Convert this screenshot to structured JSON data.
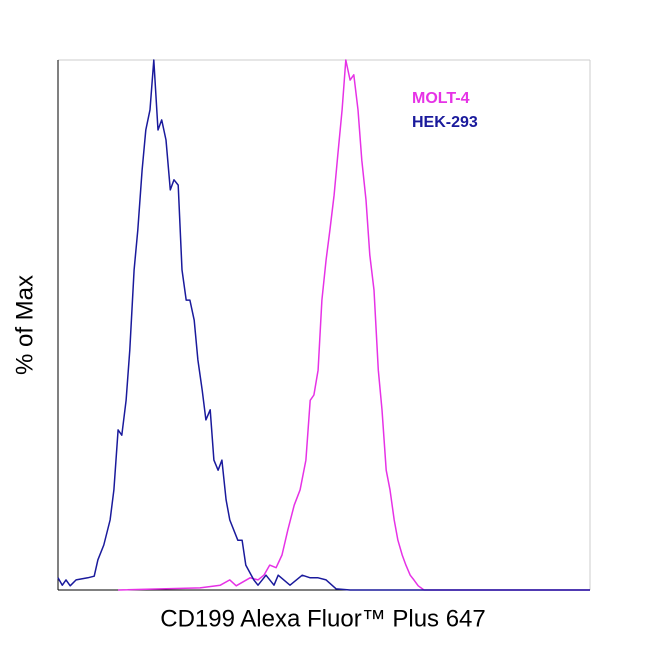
{
  "chart_data": {
    "type": "line",
    "x_label": "CD199 Alexa Fluor™ Plus 647",
    "y_label": "% of Max",
    "xlim": [
      0,
      100
    ],
    "ylim": [
      0,
      100
    ],
    "legend": "top-right",
    "series": [
      {
        "name": "MOLT-4",
        "color": "#e632e6",
        "x": [
          11.3,
          26.7,
          30.5,
          32.3,
          33.5,
          36.1,
          37.6,
          38.7,
          39.8,
          41.0,
          42.1,
          43.2,
          44.4,
          45.5,
          46.6,
          47.4,
          48.1,
          48.9,
          49.6,
          50.4,
          51.1,
          51.9,
          52.6,
          53.4,
          54.1,
          54.9,
          55.6,
          56.4,
          57.1,
          57.9,
          58.6,
          59.4,
          60.2,
          60.9,
          61.7,
          62.4,
          63.2,
          63.9,
          64.7,
          65.4,
          66.2,
          66.9,
          67.7,
          68.8,
          100
        ],
        "values": [
          0,
          0.4,
          0.9,
          1.9,
          0.8,
          2.3,
          1.9,
          2.8,
          4.7,
          4.2,
          6.6,
          11.3,
          16.0,
          18.9,
          24.5,
          35.8,
          36.8,
          41.5,
          54.7,
          62.3,
          67.9,
          74.5,
          82.1,
          90.6,
          100,
          96.2,
          97.2,
          90.6,
          81.1,
          73.6,
          63.2,
          56.6,
          41.5,
          34.0,
          22.6,
          18.9,
          13.2,
          9.4,
          6.6,
          4.7,
          2.8,
          1.9,
          0.8,
          0,
          0
        ]
      },
      {
        "name": "HEK-293",
        "color": "#1a1a9c",
        "x": [
          0,
          0.8,
          1.5,
          2.3,
          3.4,
          5.6,
          6.8,
          7.5,
          8.6,
          9.8,
          10.5,
          11.3,
          12.0,
          12.8,
          13.5,
          14.3,
          15.0,
          15.8,
          16.5,
          17.3,
          18.0,
          18.8,
          19.5,
          20.3,
          21.1,
          21.8,
          22.6,
          23.3,
          24.1,
          24.8,
          25.6,
          26.3,
          27.1,
          27.8,
          28.6,
          29.3,
          30.1,
          30.8,
          31.6,
          32.3,
          33.8,
          34.6,
          35.3,
          36.8,
          37.6,
          39.1,
          40.6,
          41.4,
          43.6,
          45.9,
          47.4,
          48.9,
          50.4,
          52.3,
          54.9,
          100
        ],
        "values": [
          2.3,
          0.9,
          1.9,
          0.8,
          1.9,
          2.3,
          2.6,
          5.7,
          8.5,
          13.2,
          18.9,
          30.2,
          29.2,
          35.8,
          45.3,
          60.4,
          67.9,
          79.2,
          86.8,
          90.6,
          100,
          86.8,
          88.7,
          84.9,
          75.5,
          77.4,
          76.4,
          60.4,
          54.7,
          54.7,
          50.9,
          43.4,
          37.7,
          32.1,
          34.0,
          24.5,
          22.6,
          24.5,
          17.0,
          13.2,
          9.4,
          9.4,
          4.7,
          1.9,
          0.9,
          2.8,
          0.9,
          2.8,
          0.9,
          2.8,
          2.3,
          2.3,
          1.9,
          0.2,
          0,
          0
        ]
      }
    ]
  }
}
